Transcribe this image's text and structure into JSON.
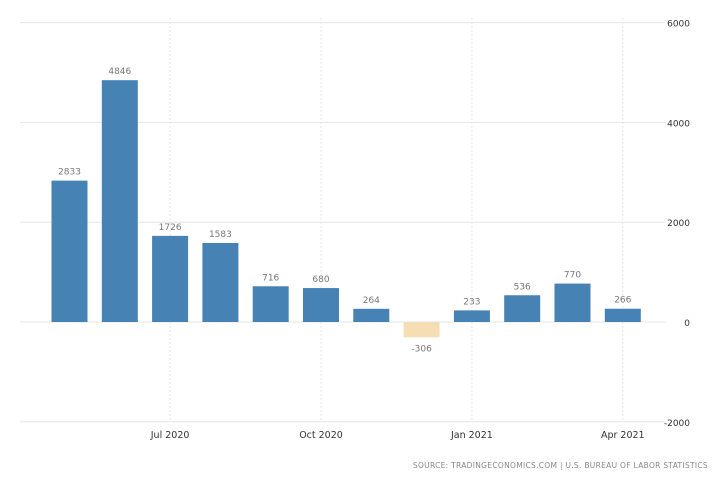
{
  "chart_data": {
    "type": "bar",
    "categories": [
      "May 2020",
      "Jun 2020",
      "Jul 2020",
      "Aug 2020",
      "Sep 2020",
      "Oct 2020",
      "Nov 2020",
      "Dec 2020",
      "Jan 2021",
      "Feb 2021",
      "Mar 2021",
      "Apr 2021"
    ],
    "values": [
      2833,
      4846,
      1726,
      1583,
      716,
      680,
      264,
      -306,
      233,
      536,
      770,
      266
    ],
    "x_tick_labels": [
      {
        "index": 2,
        "label": "Jul 2020"
      },
      {
        "index": 5,
        "label": "Oct 2020"
      },
      {
        "index": 8,
        "label": "Jan 2021"
      },
      {
        "index": 11,
        "label": "Apr 2021"
      }
    ],
    "y_ticks": [
      6000,
      4000,
      2000,
      0,
      -2000
    ],
    "ylim": [
      -2000,
      6000
    ],
    "y_axis_position": "right",
    "grid": true,
    "colors": {
      "positive": "#4682b4",
      "negative": "#f5deb3",
      "label": "#777777",
      "grid": "#e6e6e6"
    }
  },
  "source": "SOURCE: TRADINGECONOMICS.COM  |  U.S. BUREAU OF LABOR STATISTICS"
}
